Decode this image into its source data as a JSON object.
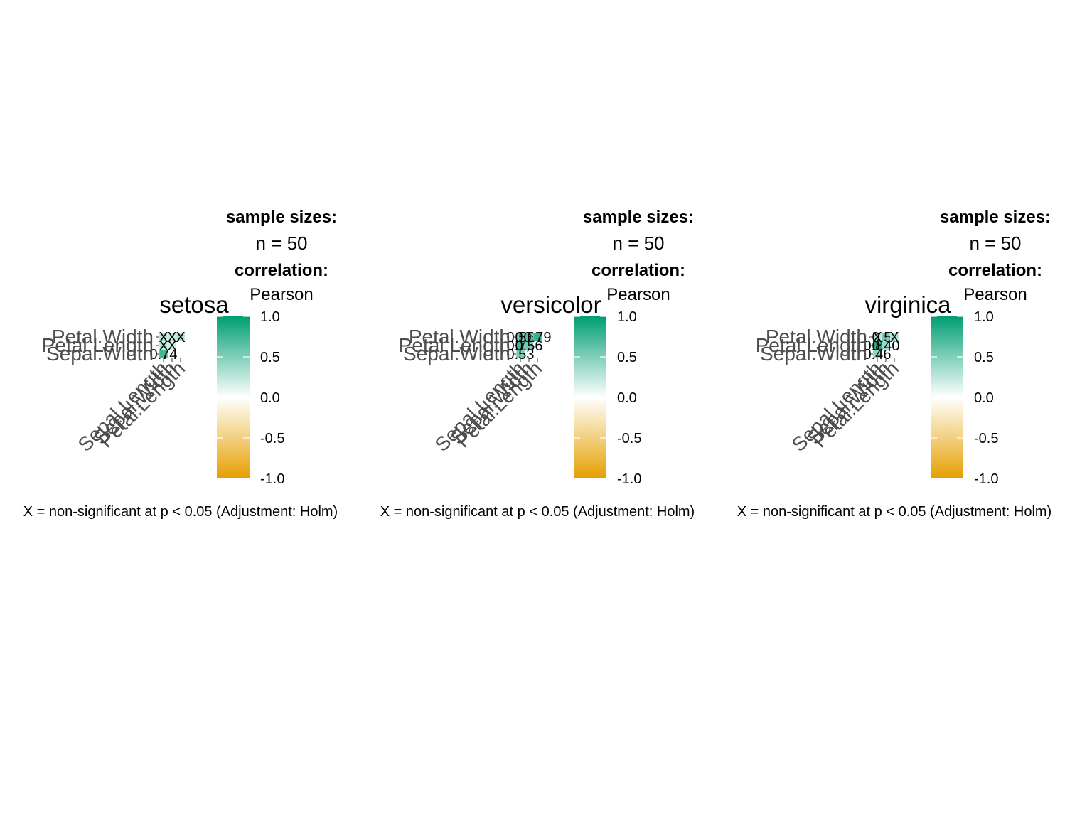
{
  "colors": {
    "low": "#E69F00",
    "mid": "#FFFFFF",
    "high": "#009E73",
    "axis_text": "#4D4D4D",
    "text": "#000000"
  },
  "chart_data": [
    {
      "type": "heatmap",
      "title": "setosa",
      "x_categories": [
        "Sepal.Length",
        "Sepal.Width",
        "Petal.Length"
      ],
      "y_categories": [
        "Sepal.Width",
        "Petal.Length",
        "Petal.Width"
      ],
      "cells": [
        {
          "x": "Sepal.Length",
          "y": "Sepal.Width",
          "r": 0.74,
          "label": "0.74"
        },
        {
          "x": "Sepal.Length",
          "y": "Petal.Length",
          "r": 0.27,
          "label": "X"
        },
        {
          "x": "Sepal.Width",
          "y": "Petal.Length",
          "r": 0.18,
          "label": "X"
        },
        {
          "x": "Sepal.Length",
          "y": "Petal.Width",
          "r": 0.28,
          "label": "X"
        },
        {
          "x": "Sepal.Width",
          "y": "Petal.Width",
          "r": 0.23,
          "label": "X"
        },
        {
          "x": "Petal.Length",
          "y": "Petal.Width",
          "r": 0.33,
          "label": "X"
        }
      ],
      "legend": {
        "heading_sizes": "sample sizes:",
        "n_label": "n = 50",
        "heading_corr": "correlation:",
        "method": "Pearson",
        "ticks": [
          "1.0",
          "0.5",
          "0.0",
          "-0.5",
          "-1.0"
        ],
        "range": [
          -1,
          1
        ]
      },
      "caption": "X = non-significant at p < 0.05 (Adjustment: Holm)"
    },
    {
      "type": "heatmap",
      "title": "versicolor",
      "x_categories": [
        "Sepal.Length",
        "Sepal.Width",
        "Petal.Length"
      ],
      "y_categories": [
        "Sepal.Width",
        "Petal.Length",
        "Petal.Width"
      ],
      "cells": [
        {
          "x": "Sepal.Length",
          "y": "Sepal.Width",
          "r": 0.53,
          "label": "0.53"
        },
        {
          "x": "Sepal.Length",
          "y": "Petal.Length",
          "r": 0.75,
          "label": "0.75"
        },
        {
          "x": "Sepal.Width",
          "y": "Petal.Length",
          "r": 0.56,
          "label": "0.56"
        },
        {
          "x": "Sepal.Length",
          "y": "Petal.Width",
          "r": 0.55,
          "label": "0.55"
        },
        {
          "x": "Sepal.Width",
          "y": "Petal.Width",
          "r": 0.66,
          "label": "0.66"
        },
        {
          "x": "Petal.Length",
          "y": "Petal.Width",
          "r": 0.79,
          "label": "0.79"
        }
      ],
      "legend": {
        "heading_sizes": "sample sizes:",
        "n_label": "n = 50",
        "heading_corr": "correlation:",
        "method": "Pearson",
        "ticks": [
          "1.0",
          "0.5",
          "0.0",
          "-0.5",
          "-1.0"
        ],
        "range": [
          -1,
          1
        ]
      },
      "caption": "X = non-significant at p < 0.05 (Adjustment: Holm)"
    },
    {
      "type": "heatmap",
      "title": "virginica",
      "x_categories": [
        "Sepal.Length",
        "Sepal.Width",
        "Petal.Length"
      ],
      "y_categories": [
        "Sepal.Width",
        "Petal.Length",
        "Petal.Width"
      ],
      "cells": [
        {
          "x": "Sepal.Length",
          "y": "Sepal.Width",
          "r": 0.46,
          "label": "0.46"
        },
        {
          "x": "Sepal.Length",
          "y": "Petal.Length",
          "r": 0.86,
          "label": "0.86"
        },
        {
          "x": "Sepal.Width",
          "y": "Petal.Length",
          "r": 0.4,
          "label": "0.40"
        },
        {
          "x": "Sepal.Length",
          "y": "Petal.Width",
          "r": 0.28,
          "label": "X"
        },
        {
          "x": "Sepal.Width",
          "y": "Petal.Width",
          "r": 0.54,
          "label": "0.54"
        },
        {
          "x": "Petal.Length",
          "y": "Petal.Width",
          "r": 0.32,
          "label": "X"
        }
      ],
      "legend": {
        "heading_sizes": "sample sizes:",
        "n_label": "n = 50",
        "heading_corr": "correlation:",
        "method": "Pearson",
        "ticks": [
          "1.0",
          "0.5",
          "0.0",
          "-0.5",
          "-1.0"
        ],
        "range": [
          -1,
          1
        ]
      },
      "caption": "X = non-significant at p < 0.05 (Adjustment: Holm)"
    }
  ]
}
